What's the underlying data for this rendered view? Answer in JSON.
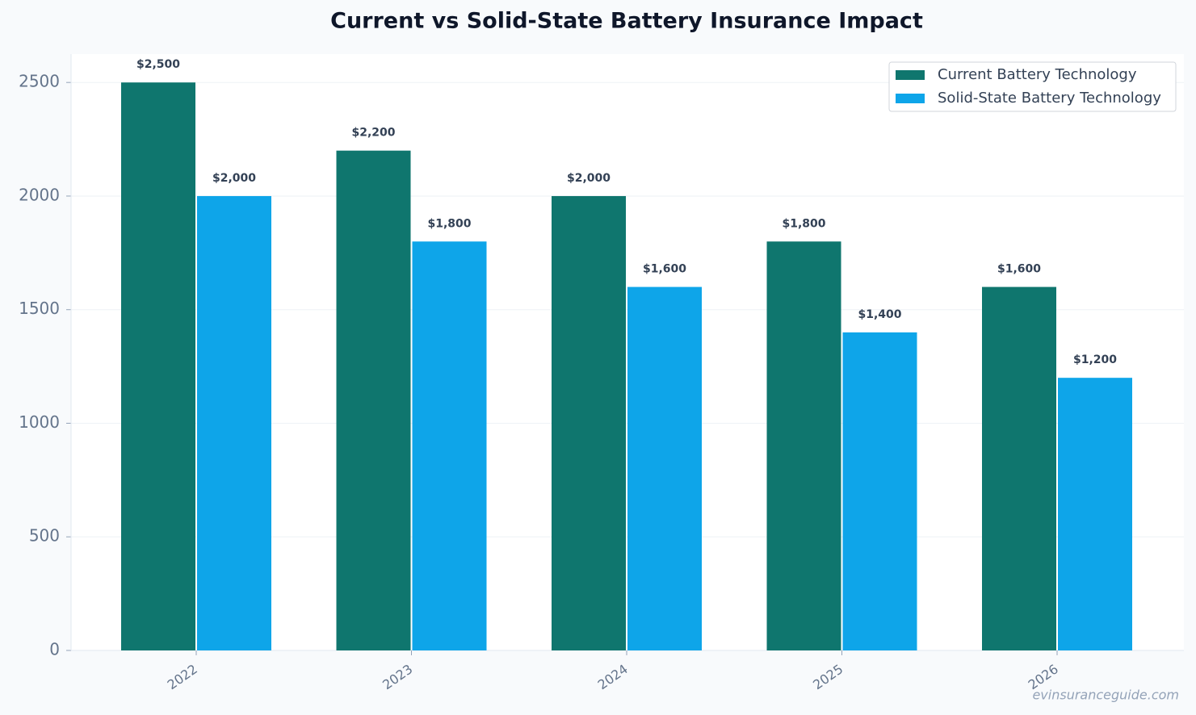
{
  "chart_data": {
    "type": "bar",
    "title": "Current vs Solid-State Battery Insurance Impact",
    "categories": [
      "2022",
      "2023",
      "2024",
      "2025",
      "2026"
    ],
    "series": [
      {
        "name": "Current Battery Technology",
        "color": "#0f766e",
        "values": [
          2500,
          2200,
          2000,
          1800,
          1600
        ],
        "value_labels": [
          "$2,500",
          "$2,200",
          "$2,000",
          "$1,800",
          "$1,600"
        ]
      },
      {
        "name": "Solid-State Battery Technology",
        "color": "#0ea5e9",
        "values": [
          2000,
          1800,
          1600,
          1400,
          1200
        ],
        "value_labels": [
          "$2,000",
          "$1,800",
          "$1,600",
          "$1,400",
          "$1,200"
        ]
      }
    ],
    "ylim": [
      0,
      2625
    ],
    "yticks": [
      0,
      500,
      1000,
      1500,
      2000,
      2500
    ],
    "grid": true,
    "legend": "upper right",
    "watermark": "evinsuranceguide.com"
  }
}
